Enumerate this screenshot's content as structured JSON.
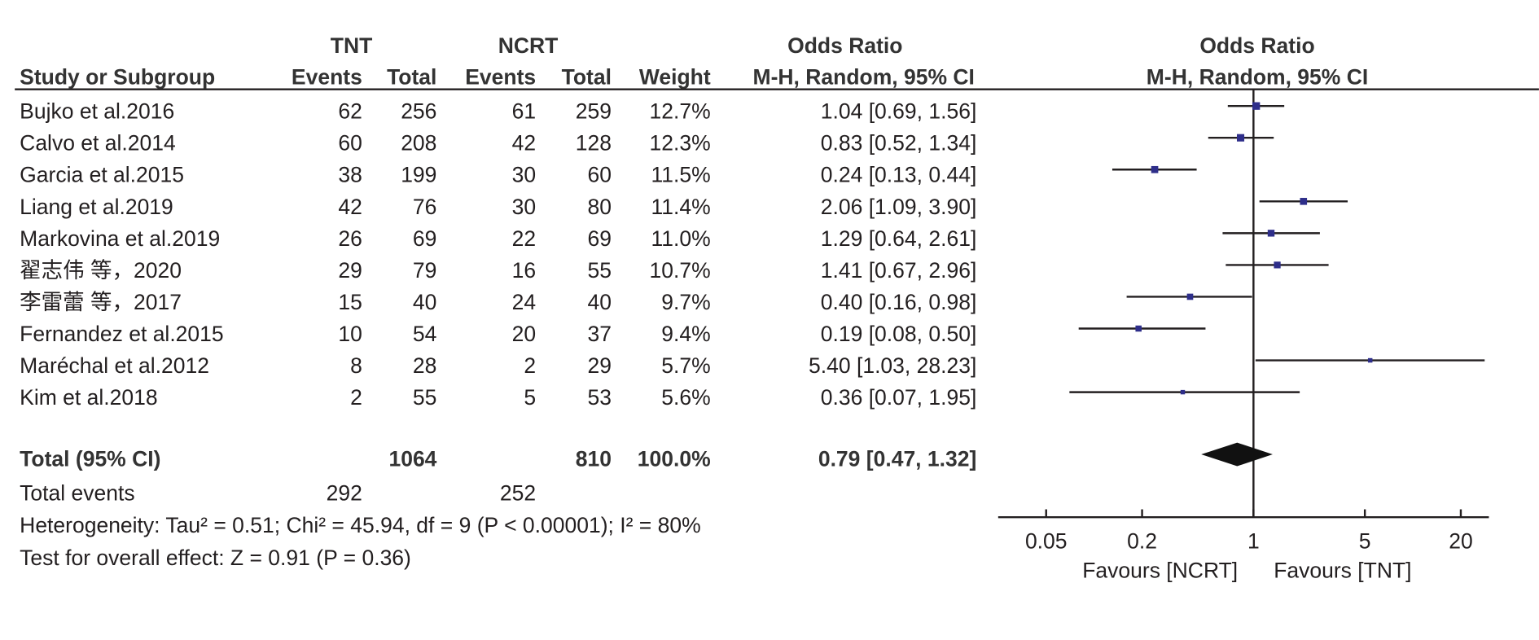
{
  "chart_data": {
    "type": "forest",
    "headers": {
      "group1": "TNT",
      "group2": "NCRT",
      "effect": "Odds Ratio",
      "plot_effect": "Odds Ratio",
      "study": "Study or Subgroup",
      "events1": "Events",
      "total1": "Total",
      "events2": "Events",
      "total2": "Total",
      "weight": "Weight",
      "method": "M-H, Random, 95% CI",
      "plot_method": "M-H, Random, 95% CI"
    },
    "categories": [
      "Bujko et al.2016",
      "Calvo et al.2014",
      "Garcia et al.2015",
      "Liang et al.2019",
      "Markovina et al.2019",
      "翟志伟 等，2020",
      "李雷蕾 等，2017",
      "Fernandez et al.2015",
      "Maréchal et al.2012",
      "Kim et al.2018"
    ],
    "events1": [
      62,
      60,
      38,
      42,
      26,
      29,
      15,
      10,
      8,
      2
    ],
    "total1": [
      256,
      208,
      199,
      76,
      69,
      79,
      40,
      54,
      28,
      55
    ],
    "events2": [
      61,
      42,
      30,
      30,
      22,
      16,
      24,
      20,
      2,
      5
    ],
    "total2": [
      259,
      128,
      60,
      80,
      69,
      55,
      40,
      37,
      29,
      53
    ],
    "weights": [
      12.7,
      12.3,
      11.5,
      11.4,
      11.0,
      10.7,
      9.7,
      9.4,
      5.7,
      5.6
    ],
    "weight_labels": [
      "12.7%",
      "12.3%",
      "11.5%",
      "11.4%",
      "11.0%",
      "10.7%",
      "9.7%",
      "9.4%",
      "5.7%",
      "5.6%"
    ],
    "values": [
      1.04,
      0.83,
      0.24,
      2.06,
      1.29,
      1.41,
      0.4,
      0.19,
      5.4,
      0.36
    ],
    "ci_low": [
      0.69,
      0.52,
      0.13,
      1.09,
      0.64,
      0.67,
      0.16,
      0.08,
      1.03,
      0.07
    ],
    "ci_high": [
      1.56,
      1.34,
      0.44,
      3.9,
      2.61,
      2.96,
      0.98,
      0.5,
      28.23,
      1.95
    ],
    "value_labels": [
      "1.04 [0.69, 1.56]",
      "0.83 [0.52, 1.34]",
      "0.24 [0.13, 0.44]",
      "2.06 [1.09, 3.90]",
      "1.29 [0.64, 2.61]",
      "1.41 [0.67, 2.96]",
      "0.40 [0.16, 0.98]",
      "0.19 [0.08, 0.50]",
      "5.40 [1.03, 28.23]",
      "0.36 [0.07, 1.95]"
    ],
    "total": {
      "label": "Total (95% CI)",
      "total1": 1064,
      "total2": 810,
      "weight": 100.0,
      "weight_label": "100.0%",
      "value": 0.79,
      "ci_low": 0.47,
      "ci_high": 1.32,
      "value_label": "0.79 [0.47, 1.32]"
    },
    "total_events": {
      "label": "Total events",
      "events1": 292,
      "events2": 252
    },
    "heterogeneity": "Heterogeneity: Tau² = 0.51; Chi² = 45.94, df = 9 (P < 0.00001); I² = 80%",
    "overall_effect": "Test for overall effect: Z = 0.91 (P = 0.36)",
    "log_scale": true,
    "xlim": [
      0.025,
      30
    ],
    "xticks": [
      0.05,
      0.2,
      1,
      5,
      20
    ],
    "favours_left": "Favours [NCRT]",
    "favours_right": "Favours [TNT]",
    "color": "#2e2e8a"
  }
}
